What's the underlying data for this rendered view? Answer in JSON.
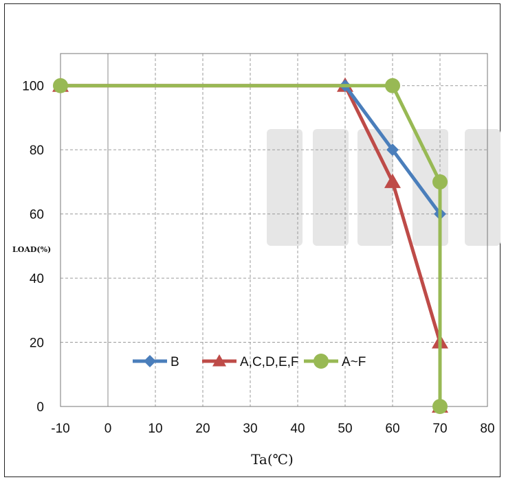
{
  "chart_data": {
    "type": "line",
    "xlabel": "Ta(℃)",
    "ylabel": "LOAD(%)",
    "xlim": [
      -10,
      80
    ],
    "ylim": [
      0,
      110
    ],
    "x_ticks": [
      "-10",
      "0",
      "10",
      "20",
      "30",
      "40",
      "50",
      "60",
      "70",
      "80"
    ],
    "y_ticks": [
      "0",
      "20",
      "40",
      "60",
      "80",
      "100"
    ],
    "x_tick_values": [
      -10,
      0,
      10,
      20,
      30,
      40,
      50,
      60,
      70,
      80
    ],
    "y_tick_values": [
      0,
      20,
      40,
      60,
      80,
      100
    ],
    "grid": true,
    "legend_position": "bottom-center (inside plot)",
    "series": [
      {
        "name": "B",
        "color": "#4a7ebb",
        "marker": "diamond",
        "points": [
          [
            50,
            100
          ],
          [
            60,
            80
          ],
          [
            70,
            60
          ]
        ]
      },
      {
        "name": "A,C,D,E,F",
        "color": "#be4b48",
        "marker": "triangle",
        "points": [
          [
            -10,
            100
          ],
          [
            50,
            100
          ],
          [
            60,
            70
          ],
          [
            70,
            20
          ],
          [
            70,
            0
          ]
        ]
      },
      {
        "name": "A~F",
        "color": "#98b954",
        "marker": "circle",
        "points": [
          [
            -10,
            100
          ],
          [
            60,
            100
          ],
          [
            70,
            70
          ],
          [
            70,
            0
          ]
        ]
      }
    ]
  }
}
